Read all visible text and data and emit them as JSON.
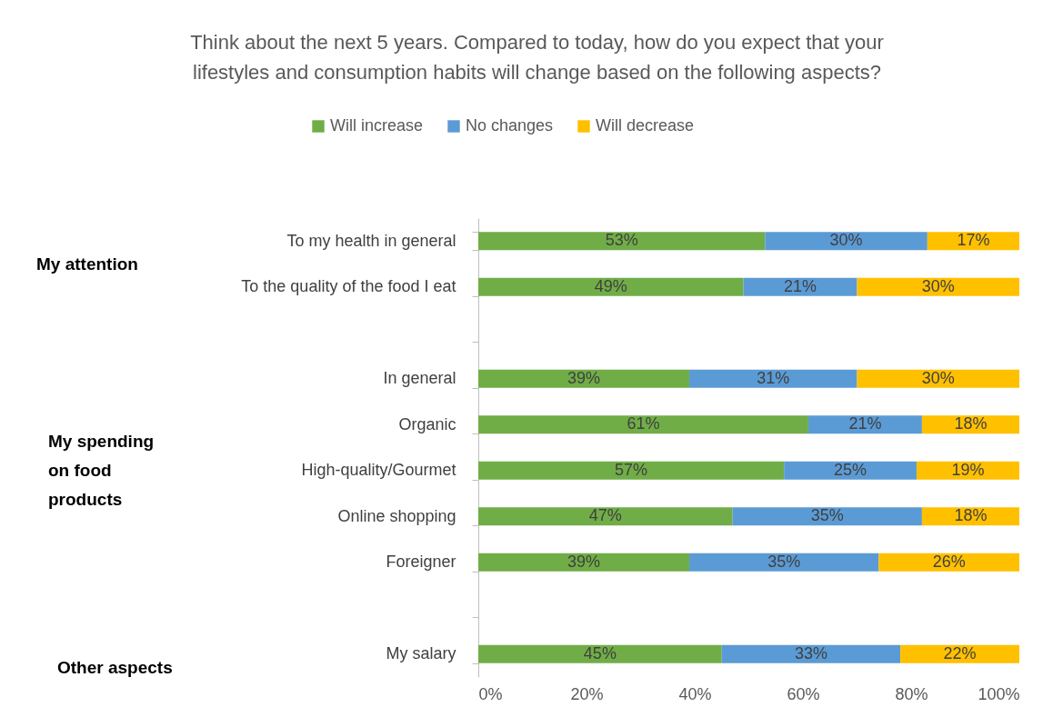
{
  "chart_data": {
    "type": "bar",
    "orientation": "horizontal",
    "stacked": true,
    "title": "Think about the next 5 years. Compared to today, how do you expect that your lifestyles and consumption habits will change based on the following aspects?",
    "categories": [
      "To my health in general",
      "To the quality of the food I eat",
      null,
      "In general",
      "Organic",
      "High-quality/Gourmet",
      "Online shopping",
      "Foreigner",
      null,
      "My salary"
    ],
    "series": [
      {
        "name": "Will increase",
        "color": "#70ad47",
        "values": [
          53,
          49,
          null,
          39,
          61,
          56.5,
          47,
          39,
          null,
          45
        ],
        "value_labels": [
          "53%",
          "49%",
          null,
          "39%",
          "61%",
          "57%",
          "47%",
          "39%",
          null,
          "45%"
        ]
      },
      {
        "name": "No changes",
        "color": "#5b9bd5",
        "values": [
          30,
          21,
          null,
          31,
          21,
          24.5,
          35,
          35,
          null,
          33
        ],
        "value_labels": [
          "30%",
          "21%",
          null,
          "31%",
          "21%",
          "25%",
          "35%",
          "35%",
          null,
          "33%"
        ]
      },
      {
        "name": "Will decrease",
        "color": "#ffc000",
        "values": [
          17,
          30,
          null,
          30,
          18,
          19,
          18,
          26,
          null,
          22
        ],
        "value_labels": [
          "17%",
          "30%",
          null,
          "30%",
          "18%",
          "19%",
          "18%",
          "26%",
          null,
          "22%"
        ]
      }
    ],
    "xlim": [
      0,
      100
    ],
    "xticks": [
      {
        "value": 0,
        "label": "0%"
      },
      {
        "value": 20,
        "label": "20%"
      },
      {
        "value": 40,
        "label": "40%"
      },
      {
        "value": 60,
        "label": "60%"
      },
      {
        "value": 80,
        "label": "80%"
      },
      {
        "value": 100,
        "label": "100%"
      }
    ],
    "legend": "top",
    "grid": false,
    "annotations": [
      "My attention",
      "My spending on food products",
      "Other aspects"
    ]
  }
}
